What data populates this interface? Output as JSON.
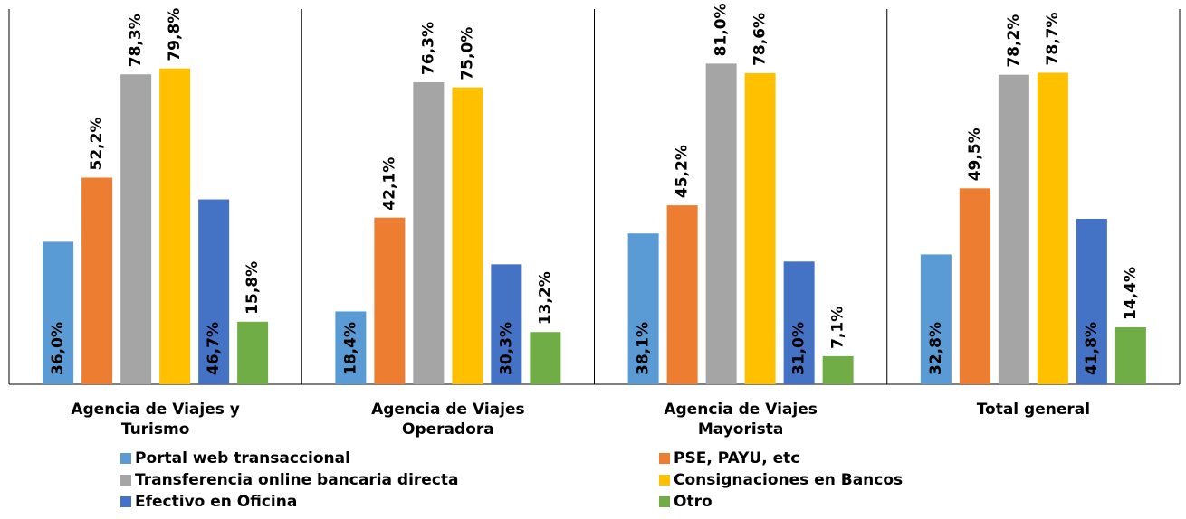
{
  "chart_data": {
    "type": "bar",
    "categories": [
      "Agencia de Viajes y Turismo",
      "Agencia de Viajes Operadora",
      "Agencia de Viajes Mayorista",
      "Total general"
    ],
    "series": [
      {
        "name": "Portal web transaccional",
        "color": "#5b9bd5",
        "values": [
          36.0,
          18.4,
          38.1,
          32.8
        ],
        "value_labels": [
          "36,0%",
          "18,4%",
          "38,1%",
          "32,8%"
        ]
      },
      {
        "name": "PSE, PAYU, etc",
        "color": "#ed7d31",
        "values": [
          52.2,
          42.1,
          45.2,
          49.5
        ],
        "value_labels": [
          "52,2%",
          "42,1%",
          "45,2%",
          "49,5%"
        ]
      },
      {
        "name": "Transferencia online bancaria directa",
        "color": "#a5a5a5",
        "values": [
          78.3,
          76.3,
          81.0,
          78.2
        ],
        "value_labels": [
          "78,3%",
          "76,3%",
          "81,0%",
          "78,2%"
        ]
      },
      {
        "name": "Consignaciones en Bancos",
        "color": "#ffc000",
        "values": [
          79.8,
          75.0,
          78.6,
          78.7
        ],
        "value_labels": [
          "79,8%",
          "75,0%",
          "78,6%",
          "78,7%"
        ]
      },
      {
        "name": "Efectivo en Oficina",
        "color": "#4472c4",
        "values": [
          46.7,
          30.3,
          31.0,
          41.8
        ],
        "value_labels": [
          "46,7%",
          "30,3%",
          "31,0%",
          "41,8%"
        ]
      },
      {
        "name": "Otro",
        "color": "#70ad47",
        "values": [
          15.8,
          13.2,
          7.1,
          14.4
        ],
        "value_labels": [
          "15,8%",
          "13,2%",
          "7,1%",
          "14,4%"
        ]
      }
    ],
    "ylim": [
      0,
      90
    ]
  }
}
